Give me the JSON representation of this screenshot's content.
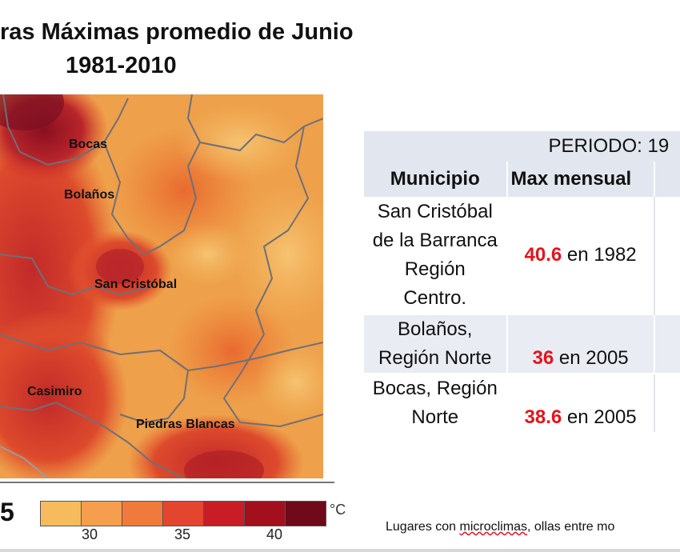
{
  "title": {
    "line1": "ras Máximas promedio de Junio",
    "line2": "1981-2010"
  },
  "map": {
    "places": [
      {
        "name": "Bocas"
      },
      {
        "name": "Bolaños"
      },
      {
        "name": "San Cristóbal"
      },
      {
        "name": "Casimiro"
      },
      {
        "name": "Piedras Blancas"
      }
    ],
    "colors": {
      "low": "#f5b35a",
      "mid": "#ec7a32",
      "high": "#d8362a",
      "max": "#7d0a1e"
    }
  },
  "legend": {
    "swatches": [
      "#f6bb5c",
      "#f59f4e",
      "#ef7a3b",
      "#e4452f",
      "#c81d24",
      "#a30f1d",
      "#6e0a19"
    ],
    "ticks": [
      "30",
      "35",
      "40"
    ],
    "unit": "°C",
    "cut_text": "5"
  },
  "table": {
    "period": "PERIODO: 19",
    "headers": {
      "municipio": "Municipio",
      "max": "Max  mensual"
    },
    "rows": [
      {
        "municipio": [
          "San Cristóbal",
          "de la Barranca",
          "Región",
          "Centro."
        ],
        "value": "40.6",
        "year_text": " en 1982"
      },
      {
        "municipio": [
          "Bolaños,",
          "Región Norte"
        ],
        "value": "36",
        "year_text": " en 2005"
      },
      {
        "municipio": [
          "Bocas, Región",
          "Norte"
        ],
        "value": "38.6",
        "year_text": " en 2005"
      }
    ]
  },
  "footnote": {
    "prefix": "Lugares con ",
    "wavy": "microclimas",
    "suffix": ", ollas entre mo"
  }
}
